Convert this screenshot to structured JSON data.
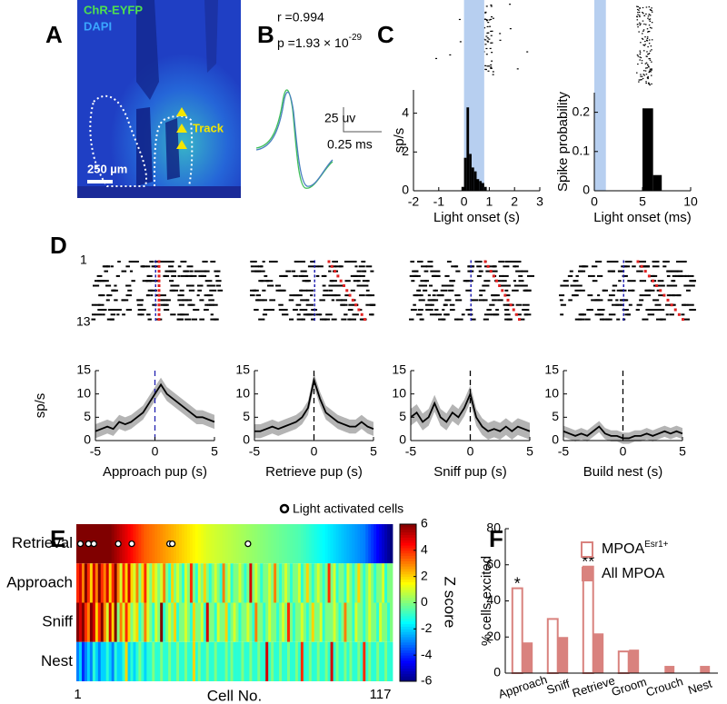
{
  "panel_labels": [
    "A",
    "B",
    "C",
    "D",
    "E",
    "F"
  ],
  "panel_a": {
    "stain_1": "ChR-EYFP",
    "stain_2": "DAPI",
    "track": "Track",
    "scale_bar": "250 µm"
  },
  "panel_b": {
    "r": "r =0.994",
    "p": "p =1.93 × 10",
    "p_exponent": "-29",
    "scale_y": "25 uv",
    "scale_x": "0.25 ms"
  },
  "raster_rows": [
    "1",
    "13"
  ],
  "chart_data": [
    {
      "type": "histogram",
      "bins": [
        -0.1,
        0,
        0.1,
        0.2,
        0.3,
        0.4,
        0.5,
        0.6,
        0.7,
        0.8,
        0.9
      ],
      "values": [
        0.2,
        1.7,
        4.3,
        1.9,
        1.2,
        1.0,
        0.6,
        0.5,
        0.4,
        0.2
      ],
      "color": "#000000",
      "shade": [
        0,
        0.8
      ],
      "shade_color": "#b7cff0",
      "xlim": [
        -2,
        3
      ],
      "xticks": [
        -2,
        -1,
        0,
        1,
        2,
        3
      ],
      "ylim": [
        0,
        5.2
      ],
      "yticks": [
        0,
        2,
        4
      ],
      "xlabel": "Light onset (s)",
      "ylabel": "sp/s"
    },
    {
      "type": "histogram",
      "bins": [
        5,
        6.1,
        7
      ],
      "values": [
        0.21,
        0.04
      ],
      "color": "#000000",
      "shade": [
        0,
        1.2
      ],
      "shade_color": "#b7cff0",
      "xlim": [
        0,
        10
      ],
      "xticks": [
        0,
        5,
        10
      ],
      "ylim": [
        0,
        0.25
      ],
      "yticks": [
        0,
        0.1,
        0.2
      ],
      "xlabel": "Light onset (ms)",
      "ylabel": "Spike probability"
    },
    {
      "type": "line",
      "x": [
        -5,
        -4.5,
        -4,
        -3.5,
        -3,
        -2.5,
        -2,
        -1.5,
        -1,
        -0.5,
        0,
        0.5,
        1,
        1.5,
        2,
        2.5,
        3,
        3.5,
        4,
        4.5,
        5
      ],
      "values": [
        2,
        2.5,
        3,
        2.5,
        4,
        3.5,
        4,
        5,
        6,
        8,
        10,
        12,
        10,
        9,
        8,
        7,
        6,
        5,
        5,
        4.5,
        4
      ],
      "sem": 1.5,
      "color": "#000000",
      "band_color": "#b4b4b4",
      "event": 0,
      "event_color": "#2020b0",
      "xlim": [
        -5,
        5
      ],
      "xticks": [
        -5,
        0,
        5
      ],
      "ylim": [
        0,
        15
      ],
      "yticks": [
        0,
        5,
        10,
        15
      ],
      "xlabel": "Approach pup (s)",
      "ylabel": "sp/s"
    },
    {
      "type": "line",
      "x": [
        -5,
        -4.5,
        -4,
        -3.5,
        -3,
        -2.5,
        -2,
        -1.5,
        -1,
        -0.5,
        0,
        0.5,
        1,
        1.5,
        2,
        2.5,
        3,
        3.5,
        4,
        4.5,
        5
      ],
      "values": [
        2,
        2,
        2.5,
        3,
        2.5,
        3,
        3.5,
        4,
        5,
        7,
        13,
        9,
        6,
        5,
        4,
        3.5,
        3,
        3,
        4,
        3,
        2.5
      ],
      "sem": 1.5,
      "color": "#000000",
      "band_color": "#b4b4b4",
      "event": 0,
      "event_color": "#000000",
      "xlim": [
        -5,
        5
      ],
      "xticks": [
        -5,
        0,
        5
      ],
      "ylim": [
        0,
        15
      ],
      "yticks": [
        0,
        5,
        10,
        15
      ],
      "xlabel": "Retrieve pup (s)"
    },
    {
      "type": "line",
      "x": [
        -5,
        -4.5,
        -4,
        -3.5,
        -3,
        -2.5,
        -2,
        -1.5,
        -1,
        -0.5,
        0,
        0.5,
        1,
        1.5,
        2,
        2.5,
        3,
        3.5,
        4,
        4.5,
        5
      ],
      "values": [
        5,
        6,
        4,
        5,
        8,
        5,
        4,
        6,
        5,
        7,
        10,
        5,
        3,
        2,
        2.5,
        2,
        3,
        2,
        3,
        2.5,
        2
      ],
      "sem": 1.8,
      "color": "#000000",
      "band_color": "#b4b4b4",
      "event": 0,
      "event_color": "#000000",
      "xlim": [
        -5,
        5
      ],
      "xticks": [
        -5,
        0,
        5
      ],
      "ylim": [
        0,
        15
      ],
      "yticks": [
        0,
        5,
        10,
        15
      ],
      "xlabel": "Sniff pup (s)"
    },
    {
      "type": "line",
      "x": [
        -5,
        -4.5,
        -4,
        -3.5,
        -3,
        -2.5,
        -2,
        -1.5,
        -1,
        -0.5,
        0,
        0.5,
        1,
        1.5,
        2,
        2.5,
        3,
        3.5,
        4,
        4.5,
        5
      ],
      "values": [
        2,
        1.5,
        1,
        1.5,
        1,
        2,
        3,
        1.5,
        1,
        1,
        0.5,
        0.5,
        1,
        1,
        1.5,
        1,
        1.5,
        2,
        1.5,
        2,
        1.5
      ],
      "sem": 1.2,
      "color": "#000000",
      "band_color": "#b4b4b4",
      "event": 0,
      "event_color": "#000000",
      "xlim": [
        -5,
        5
      ],
      "xticks": [
        -5,
        0,
        5
      ],
      "ylim": [
        0,
        15
      ],
      "yticks": [
        0,
        5,
        10,
        15
      ],
      "xlabel": "Build nest (s)"
    },
    {
      "type": "heatmap",
      "rows": [
        "Retrieval",
        "Approach",
        "Sniff",
        "Nest"
      ],
      "values": [
        [
          6,
          6,
          6,
          6,
          6,
          6,
          6,
          6,
          6,
          6,
          6,
          6,
          6,
          5.8,
          5.6,
          5.4,
          5.2,
          5,
          4.8,
          4.6,
          4.4,
          4.2,
          4,
          3.8,
          3.6,
          3.4,
          3.3,
          3.2,
          3.1,
          3,
          2.9,
          2.8,
          2.7,
          2.6,
          2.5,
          2.4,
          2.3,
          2.2,
          2.1,
          2,
          1.9,
          1.8,
          1.7,
          1.6,
          1.5,
          1.4,
          1.3,
          1.2,
          1.1,
          1.05,
          1,
          0.95,
          0.9,
          0.85,
          0.8,
          0.75,
          0.7,
          0.65,
          0.6,
          0.55,
          0.5,
          0.45,
          0.4,
          0.35,
          0.3,
          0.25,
          0.2,
          0.15,
          0.1,
          0.05,
          0,
          -0.05,
          -0.1,
          -0.15,
          -0.2,
          -0.25,
          -0.3,
          -0.35,
          -0.4,
          -0.45,
          -0.5,
          -0.55,
          -0.6,
          -0.7,
          -0.8,
          -0.9,
          -1,
          -1.1,
          -1.2,
          -1.3,
          -1.4,
          -1.5,
          -1.6,
          -1.7,
          -1.8,
          -1.9,
          -2,
          -2.1,
          -2.2,
          -2.3,
          -2.4,
          -2.5,
          -2.6,
          -2.7,
          -2.8,
          -2.9,
          -3,
          -3.3,
          -3.6,
          -3.9,
          -4.2,
          -4.5,
          -4.8,
          -5.1,
          -5.4,
          -5.7,
          -6
        ],
        [
          4,
          5,
          3,
          6,
          4,
          2,
          5,
          3,
          6,
          4,
          3,
          5,
          2,
          4,
          6,
          3,
          1,
          4,
          2,
          5,
          2,
          1,
          3,
          0,
          2,
          4,
          1,
          0,
          2,
          1,
          0,
          1,
          3,
          0,
          -1,
          2,
          0,
          1,
          0,
          -1,
          1,
          0,
          4,
          0,
          -1,
          1,
          0,
          2,
          0,
          -1,
          0,
          1,
          0,
          -1,
          3,
          0,
          1,
          -1,
          0,
          0,
          1,
          0,
          -1,
          0,
          5,
          0,
          1,
          0,
          -1,
          0,
          0,
          1,
          0,
          3,
          0,
          -1,
          0,
          1,
          0,
          -1,
          0,
          0,
          1,
          -1,
          0,
          2,
          0,
          -1,
          0,
          1,
          0,
          -1,
          0,
          4,
          0,
          1,
          -1,
          0,
          0,
          -1,
          1,
          0,
          -1,
          0,
          2,
          0,
          -1,
          0,
          1,
          0,
          -1,
          0,
          0,
          1,
          -1,
          0,
          0
        ],
        [
          6,
          5,
          6,
          4,
          3,
          6,
          5,
          2,
          4,
          6,
          3,
          1,
          5,
          2,
          6,
          0,
          3,
          1,
          4,
          2,
          0,
          1,
          2,
          -1,
          0,
          3,
          1,
          0,
          -1,
          1,
          0,
          6,
          -1,
          0,
          1,
          0,
          2,
          -1,
          0,
          0,
          1,
          0,
          -1,
          2,
          0,
          0,
          1,
          -1,
          5,
          0,
          0,
          -1,
          1,
          0,
          0,
          2,
          -1,
          0,
          1,
          0,
          -1,
          0,
          0,
          1,
          0,
          -1,
          3,
          0,
          0,
          -1,
          0,
          1,
          0,
          0,
          -1,
          0,
          1,
          0,
          4,
          0,
          -1,
          0,
          0,
          1,
          0,
          -1,
          0,
          2,
          0,
          0,
          1,
          -1,
          0,
          0,
          0,
          1,
          0,
          -1,
          0,
          3,
          0,
          0,
          -1,
          1,
          0,
          0,
          -1,
          0,
          1,
          0,
          0,
          -1,
          1,
          0,
          0,
          -1,
          0
        ],
        [
          -3,
          -2,
          -4,
          -3,
          -2,
          -3,
          -1,
          -2,
          -3,
          -2,
          -2,
          -1,
          -2,
          -3,
          -1,
          -2,
          -2,
          -1,
          2,
          -2,
          -1,
          -2,
          -1,
          0,
          -1,
          -2,
          -1,
          -1,
          0,
          -1,
          -1,
          0,
          -1,
          -1,
          0,
          -1,
          -1,
          0,
          -1,
          -1,
          0,
          -1,
          -1,
          2,
          -1,
          0,
          -1,
          -1,
          0,
          -1,
          -1,
          0,
          -1,
          -1,
          -1,
          0,
          -1,
          0,
          -1,
          -1,
          -1,
          0,
          -1,
          -1,
          0,
          -1,
          -1,
          0,
          -1,
          -1,
          5,
          -1,
          0,
          -1,
          -1,
          0,
          -1,
          -1,
          0,
          -1,
          -1,
          0,
          -1,
          4,
          -1,
          -1,
          0,
          -1,
          -1,
          0,
          -1,
          -1,
          0,
          -1,
          5,
          -1,
          0,
          -1,
          -1,
          0,
          -1,
          0,
          -1,
          -1,
          0,
          -1,
          4,
          -1,
          0,
          -1,
          -1,
          0,
          -1,
          -1,
          0,
          -1,
          -1
        ]
      ],
      "xlim": [
        1,
        117
      ],
      "xticks": [
        1,
        117
      ],
      "xlabel": "Cell No.",
      "clim": [
        -6,
        6
      ],
      "cticks": [
        -6,
        -4,
        -2,
        0,
        2,
        4,
        6
      ],
      "clabel": "Z score",
      "highlight": [
        2,
        5,
        7,
        16,
        21,
        35,
        36,
        64
      ],
      "highlight_label": "Light activated cells"
    },
    {
      "type": "grouped-bar",
      "categories": [
        "Approach",
        "Sniff",
        "Retrieve",
        "Groom",
        "Crouch",
        "Nest"
      ],
      "series": [
        {
          "name": "MPOA",
          "name_superscript": "Esr1+",
          "color": "#d9827e",
          "style": "outline",
          "values": [
            47,
            30,
            59,
            12,
            0,
            0
          ]
        },
        {
          "name": "All MPOA",
          "color": "#d9827e",
          "style": "filled",
          "values": [
            17,
            20,
            22,
            13,
            4,
            4
          ]
        }
      ],
      "annotations": [
        "*",
        null,
        "**",
        null,
        null,
        null
      ],
      "ylim": [
        0,
        80
      ],
      "yticks": [
        0,
        20,
        40,
        60,
        80
      ],
      "ylabel": "% cells excited"
    }
  ]
}
